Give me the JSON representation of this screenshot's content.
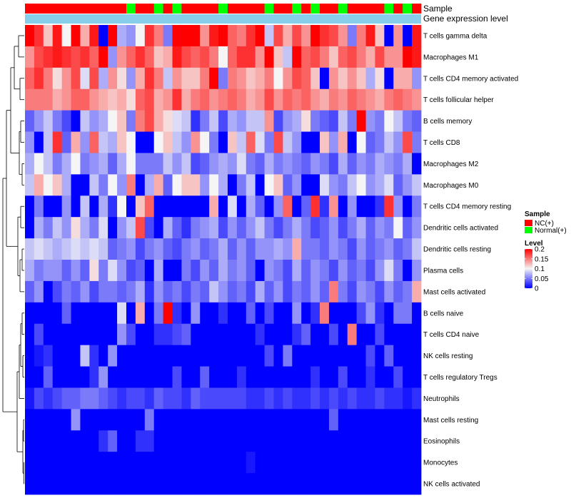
{
  "chart_data": {
    "type": "heatmap",
    "title": "",
    "annotation_tracks": [
      {
        "name": "Sample"
      },
      {
        "name": "Gene expression level"
      }
    ],
    "n_samples": 43,
    "sample_groups": [
      "NC",
      "NC",
      "NC",
      "NC",
      "NC",
      "NC",
      "NC",
      "NC",
      "NC",
      "NC",
      "NC",
      "Normal",
      "NC",
      "NC",
      "Normal",
      "NC",
      "Normal",
      "NC",
      "NC",
      "NC",
      "NC",
      "Normal",
      "NC",
      "NC",
      "NC",
      "NC",
      "Normal",
      "NC",
      "NC",
      "Normal",
      "NC",
      "Normal",
      "NC",
      "NC",
      "Normal",
      "NC",
      "NC",
      "NC",
      "NC",
      "Normal",
      "NC",
      "Normal",
      "NC"
    ],
    "rows": [
      {
        "label": "T cells gamma delta",
        "values": [
          0.2,
          0.18,
          0.12,
          0.19,
          0.1,
          0.2,
          0.13,
          0.19,
          0.0,
          0.2,
          0.07,
          0.06,
          0.1,
          0.18,
          0.15,
          0.05,
          0.2,
          0.2,
          0.2,
          0.14,
          0.19,
          0.2,
          0.16,
          0.15,
          0.18,
          0.2,
          0.08,
          0.17,
          0.13,
          0.17,
          0.14,
          0.2,
          0.18,
          0.17,
          0.14,
          0.05,
          0.15,
          0.19,
          0.12,
          0.0,
          0.14,
          0.0,
          0.19
        ]
      },
      {
        "label": "Macrophages M1",
        "values": [
          0.14,
          0.17,
          0.18,
          0.19,
          0.18,
          0.17,
          0.18,
          0.16,
          0.2,
          0.06,
          0.14,
          0.16,
          0.18,
          0.16,
          0.12,
          0.13,
          0.19,
          0.17,
          0.16,
          0.17,
          0.15,
          0.1,
          0.16,
          0.18,
          0.18,
          0.14,
          0.2,
          0.12,
          0.08,
          0.2,
          0.16,
          0.17,
          0.15,
          0.12,
          0.16,
          0.17,
          0.15,
          0.13,
          0.17,
          0.14,
          0.14,
          0.2,
          0.19
        ]
      },
      {
        "label": "T cells CD4 memory activated",
        "values": [
          0.16,
          0.18,
          0.15,
          0.11,
          0.14,
          0.17,
          0.09,
          0.17,
          0.07,
          0.14,
          0.11,
          0.06,
          0.13,
          0.18,
          0.15,
          0.08,
          0.14,
          0.12,
          0.12,
          0.15,
          0.2,
          0.05,
          0.15,
          0.14,
          0.12,
          0.13,
          0.15,
          0.1,
          0.14,
          0.17,
          0.16,
          0.12,
          0.0,
          0.14,
          0.12,
          0.14,
          0.12,
          0.07,
          0.11,
          0.0,
          0.13,
          0.13,
          0.06
        ]
      },
      {
        "label": "T cells follicular helper",
        "values": [
          0.15,
          0.15,
          0.15,
          0.13,
          0.14,
          0.16,
          0.16,
          0.14,
          0.13,
          0.12,
          0.13,
          0.11,
          0.16,
          0.17,
          0.13,
          0.14,
          0.18,
          0.13,
          0.15,
          0.16,
          0.14,
          0.15,
          0.16,
          0.15,
          0.13,
          0.14,
          0.17,
          0.14,
          0.16,
          0.15,
          0.16,
          0.14,
          0.13,
          0.15,
          0.14,
          0.16,
          0.15,
          0.14,
          0.13,
          0.15,
          0.16,
          0.15,
          0.14
        ]
      },
      {
        "label": "B cells memory",
        "values": [
          0.04,
          0.06,
          0.08,
          0.05,
          0.03,
          0.0,
          0.08,
          0.06,
          0.07,
          0.1,
          0.12,
          0.05,
          0.15,
          0.17,
          0.13,
          0.11,
          0.09,
          0.08,
          0.02,
          0.05,
          0.08,
          0.03,
          0.07,
          0.06,
          0.08,
          0.08,
          0.14,
          0.03,
          0.06,
          0.07,
          0.11,
          0.05,
          0.04,
          0.03,
          0.08,
          0.05,
          0.2,
          0.06,
          0.05,
          0.1,
          0.08,
          0.05,
          0.04
        ]
      },
      {
        "label": "T cells CD8",
        "values": [
          0.06,
          0.0,
          0.08,
          0.18,
          0.04,
          0.13,
          0.06,
          0.16,
          0.08,
          0.07,
          0.12,
          0.1,
          0.0,
          0.0,
          0.1,
          0.12,
          0.08,
          0.06,
          0.14,
          0.1,
          0.05,
          0.0,
          0.12,
          0.08,
          0.16,
          0.09,
          0.05,
          0.17,
          0.08,
          0.06,
          0.0,
          0.0,
          0.12,
          0.06,
          0.13,
          0.0,
          0.1,
          0.04,
          0.05,
          0.08,
          0.06,
          0.17,
          0.05
        ]
      },
      {
        "label": "Macrophages M2",
        "values": [
          0.07,
          0.1,
          0.08,
          0.05,
          0.07,
          0.1,
          0.05,
          0.06,
          0.07,
          0.04,
          0.07,
          0.1,
          0.05,
          0.05,
          0.05,
          0.08,
          0.06,
          0.08,
          0.03,
          0.04,
          0.06,
          0.07,
          0.06,
          0.09,
          0.05,
          0.04,
          0.07,
          0.05,
          0.06,
          0.05,
          0.04,
          0.06,
          0.05,
          0.03,
          0.07,
          0.04,
          0.06,
          0.05,
          0.07,
          0.06,
          0.05,
          0.07,
          0.0
        ]
      },
      {
        "label": "Macrophages M0",
        "values": [
          0.08,
          0.13,
          0.1,
          0.12,
          0.07,
          0.0,
          0.0,
          0.08,
          0.05,
          0.1,
          0.06,
          0.15,
          0.0,
          0.07,
          0.13,
          0.04,
          0.1,
          0.12,
          0.12,
          0.06,
          0.1,
          0.07,
          0.0,
          0.05,
          0.08,
          0.0,
          0.1,
          0.12,
          0.04,
          0.06,
          0.0,
          0.0,
          0.09,
          0.06,
          0.05,
          0.08,
          0.1,
          0.06,
          0.07,
          0.09,
          0.04,
          0.06,
          0.08
        ]
      },
      {
        "label": "T cells CD4 memory resting",
        "values": [
          0.0,
          0.05,
          0.0,
          0.0,
          0.06,
          0.0,
          0.08,
          0.0,
          0.07,
          0.02,
          0.1,
          0.0,
          0.12,
          0.16,
          0.0,
          0.0,
          0.0,
          0.0,
          0.0,
          0.0,
          0.13,
          0.0,
          0.09,
          0.0,
          0.07,
          0.04,
          0.0,
          0.06,
          0.16,
          0.0,
          0.04,
          0.18,
          0.02,
          0.14,
          0.0,
          0.06,
          0.0,
          0.0,
          0.02,
          0.18,
          0.06,
          0.0,
          0.05
        ]
      },
      {
        "label": "Dendritic cells activated",
        "values": [
          0.0,
          0.07,
          0.05,
          0.08,
          0.06,
          0.11,
          0.07,
          0.05,
          0.09,
          0.0,
          0.06,
          0.08,
          0.17,
          0.03,
          0.0,
          0.07,
          0.04,
          0.02,
          0.05,
          0.06,
          0.07,
          0.03,
          0.06,
          0.04,
          0.06,
          0.08,
          0.05,
          0.03,
          0.05,
          0.07,
          0.05,
          0.03,
          0.04,
          0.06,
          0.03,
          0.05,
          0.07,
          0.04,
          0.06,
          0.05,
          0.1,
          0.04,
          0.06
        ]
      },
      {
        "label": "Dendritic cells resting",
        "values": [
          0.08,
          0.09,
          0.08,
          0.07,
          0.08,
          0.09,
          0.08,
          0.09,
          0.08,
          0.04,
          0.05,
          0.06,
          0.03,
          0.05,
          0.06,
          0.04,
          0.03,
          0.05,
          0.06,
          0.04,
          0.05,
          0.07,
          0.04,
          0.06,
          0.04,
          0.06,
          0.06,
          0.07,
          0.06,
          0.13,
          0.05,
          0.05,
          0.04,
          0.06,
          0.05,
          0.03,
          0.06,
          0.04,
          0.05,
          0.06,
          0.04,
          0.05,
          0.08
        ]
      },
      {
        "label": "Plasma cells",
        "values": [
          0.07,
          0.05,
          0.06,
          0.06,
          0.04,
          0.06,
          0.04,
          0.11,
          0.05,
          0.09,
          0.06,
          0.03,
          0.04,
          0.0,
          0.07,
          0.0,
          0.0,
          0.05,
          0.03,
          0.06,
          0.04,
          0.07,
          0.05,
          0.06,
          0.04,
          0.0,
          0.06,
          0.05,
          0.03,
          0.07,
          0.04,
          0.06,
          0.05,
          0.03,
          0.06,
          0.04,
          0.05,
          0.03,
          0.06,
          0.09,
          0.05,
          0.0,
          0.06
        ]
      },
      {
        "label": "Mast cells activated",
        "values": [
          0.04,
          0.06,
          0.0,
          0.03,
          0.05,
          0.04,
          0.06,
          0.03,
          0.05,
          0.05,
          0.04,
          0.05,
          0.07,
          0.02,
          0.06,
          0.04,
          0.05,
          0.03,
          0.05,
          0.04,
          0.08,
          0.06,
          0.04,
          0.05,
          0.03,
          0.07,
          0.04,
          0.06,
          0.03,
          0.05,
          0.04,
          0.06,
          0.04,
          0.15,
          0.05,
          0.03,
          0.06,
          0.05,
          0.03,
          0.06,
          0.04,
          0.05,
          0.13
        ]
      },
      {
        "label": "B cells naive",
        "values": [
          0.0,
          0.0,
          0.0,
          0.0,
          0.04,
          0.0,
          0.0,
          0.0,
          0.0,
          0.0,
          0.09,
          0.0,
          0.13,
          0.0,
          0.05,
          0.2,
          0.02,
          0.0,
          0.06,
          0.0,
          0.0,
          0.02,
          0.0,
          0.0,
          0.04,
          0.0,
          0.03,
          0.0,
          0.0,
          0.06,
          0.0,
          0.02,
          0.15,
          0.0,
          0.0,
          0.0,
          0.03,
          0.06,
          0.02,
          0.0,
          0.05,
          0.05,
          0.0
        ]
      },
      {
        "label": "T cells CD4 naive",
        "values": [
          0.0,
          0.03,
          0.0,
          0.0,
          0.0,
          0.0,
          0.0,
          0.0,
          0.0,
          0.0,
          0.06,
          0.03,
          0.0,
          0.0,
          0.02,
          0.02,
          0.03,
          0.04,
          0.0,
          0.0,
          0.0,
          0.0,
          0.0,
          0.0,
          0.0,
          0.02,
          0.0,
          0.0,
          0.0,
          0.02,
          0.04,
          0.0,
          0.0,
          0.03,
          0.0,
          0.15,
          0.0,
          0.0,
          0.03,
          0.0,
          0.0,
          0.0,
          0.0
        ]
      },
      {
        "label": "NK cells resting",
        "values": [
          0.0,
          0.01,
          0.02,
          0.0,
          0.0,
          0.0,
          0.08,
          0.02,
          0.0,
          0.06,
          0.0,
          0.0,
          0.0,
          0.0,
          0.0,
          0.0,
          0.0,
          0.0,
          0.0,
          0.0,
          0.0,
          0.0,
          0.0,
          0.0,
          0.0,
          0.0,
          0.03,
          0.0,
          0.05,
          0.0,
          0.0,
          0.0,
          0.0,
          0.0,
          0.0,
          0.0,
          0.0,
          0.03,
          0.0,
          0.04,
          0.0,
          0.0,
          0.0
        ]
      },
      {
        "label": "T cells regulatory  Tregs",
        "values": [
          0.0,
          0.0,
          0.04,
          0.0,
          0.0,
          0.0,
          0.0,
          0.02,
          0.06,
          0.0,
          0.0,
          0.0,
          0.0,
          0.0,
          0.0,
          0.0,
          0.03,
          0.0,
          0.0,
          0.04,
          0.0,
          0.0,
          0.0,
          0.02,
          0.0,
          0.0,
          0.0,
          0.0,
          0.0,
          0.0,
          0.0,
          0.02,
          0.0,
          0.0,
          0.03,
          0.0,
          0.0,
          0.02,
          0.0,
          0.0,
          0.03,
          0.0,
          0.0
        ]
      },
      {
        "label": "Neutrophils",
        "values": [
          0.01,
          0.03,
          0.02,
          0.03,
          0.04,
          0.04,
          0.05,
          0.05,
          0.04,
          0.03,
          0.02,
          0.03,
          0.03,
          0.02,
          0.04,
          0.03,
          0.03,
          0.02,
          0.04,
          0.03,
          0.03,
          0.03,
          0.03,
          0.03,
          0.02,
          0.02,
          0.03,
          0.02,
          0.03,
          0.02,
          0.02,
          0.03,
          0.02,
          0.03,
          0.02,
          0.03,
          0.02,
          0.02,
          0.03,
          0.02,
          0.02,
          0.01,
          0.02
        ]
      },
      {
        "label": "Mast cells resting",
        "values": [
          0.0,
          0.0,
          0.0,
          0.0,
          0.0,
          0.06,
          0.0,
          0.0,
          0.0,
          0.0,
          0.0,
          0.0,
          0.0,
          0.05,
          0.0,
          0.0,
          0.0,
          0.0,
          0.0,
          0.0,
          0.0,
          0.0,
          0.0,
          0.0,
          0.0,
          0.0,
          0.0,
          0.0,
          0.0,
          0.0,
          0.0,
          0.0,
          0.0,
          0.04,
          0.0,
          0.0,
          0.0,
          0.0,
          0.0,
          0.0,
          0.0,
          0.0,
          0.0
        ]
      },
      {
        "label": "Eosinophils",
        "values": [
          0.0,
          0.0,
          0.0,
          0.0,
          0.0,
          0.0,
          0.0,
          0.0,
          0.02,
          0.04,
          0.0,
          0.0,
          0.02,
          0.02,
          0.0,
          0.0,
          0.0,
          0.0,
          0.0,
          0.0,
          0.0,
          0.0,
          0.0,
          0.0,
          0.0,
          0.0,
          0.0,
          0.0,
          0.0,
          0.0,
          0.0,
          0.0,
          0.0,
          0.0,
          0.0,
          0.0,
          0.0,
          0.0,
          0.0,
          0.0,
          0.0,
          0.0,
          0.0
        ]
      },
      {
        "label": "Monocytes",
        "values": [
          0.0,
          0.0,
          0.0,
          0.0,
          0.0,
          0.0,
          0.0,
          0.0,
          0.0,
          0.0,
          0.0,
          0.0,
          0.0,
          0.0,
          0.0,
          0.0,
          0.0,
          0.0,
          0.0,
          0.0,
          0.0,
          0.0,
          0.0,
          0.0,
          0.01,
          0.0,
          0.0,
          0.0,
          0.0,
          0.0,
          0.0,
          0.0,
          0.0,
          0.0,
          0.0,
          0.0,
          0.0,
          0.0,
          0.0,
          0.0,
          0.0,
          0.0,
          0.0
        ]
      },
      {
        "label": "NK cells activated",
        "values": [
          0.0,
          0.0,
          0.0,
          0.0,
          0.0,
          0.0,
          0.0,
          0.0,
          0.0,
          0.0,
          0.0,
          0.0,
          0.0,
          0.0,
          0.0,
          0.0,
          0.0,
          0.0,
          0.0,
          0.0,
          0.0,
          0.0,
          0.0,
          0.0,
          0.0,
          0.0,
          0.0,
          0.0,
          0.0,
          0.0,
          0.0,
          0.0,
          0.0,
          0.0,
          0.0,
          0.0,
          0.0,
          0.0,
          0.0,
          0.0,
          0.0,
          0.0,
          0.0
        ]
      }
    ],
    "color_scale": {
      "stops": [
        0,
        0.1,
        0.2
      ],
      "colors": [
        "#0000ff",
        "#f5f5f5",
        "#ff0000"
      ],
      "ticks": [
        0,
        0.05,
        0.1,
        0.15,
        0.2
      ],
      "tick_labels": [
        "0",
        "0.05",
        "0.1",
        "0.15",
        "0.2"
      ]
    },
    "legends": {
      "sample": {
        "title": "Sample",
        "items": [
          {
            "key": "NC",
            "label": "NC(+)",
            "color": "#ff0000"
          },
          {
            "key": "Normal",
            "label": "Normal(+)",
            "color": "#00ff00"
          }
        ]
      },
      "level": {
        "title": "Level"
      }
    },
    "expression_bar_color": "#87ceeb",
    "dendrogram": "row clustering (left side)"
  }
}
